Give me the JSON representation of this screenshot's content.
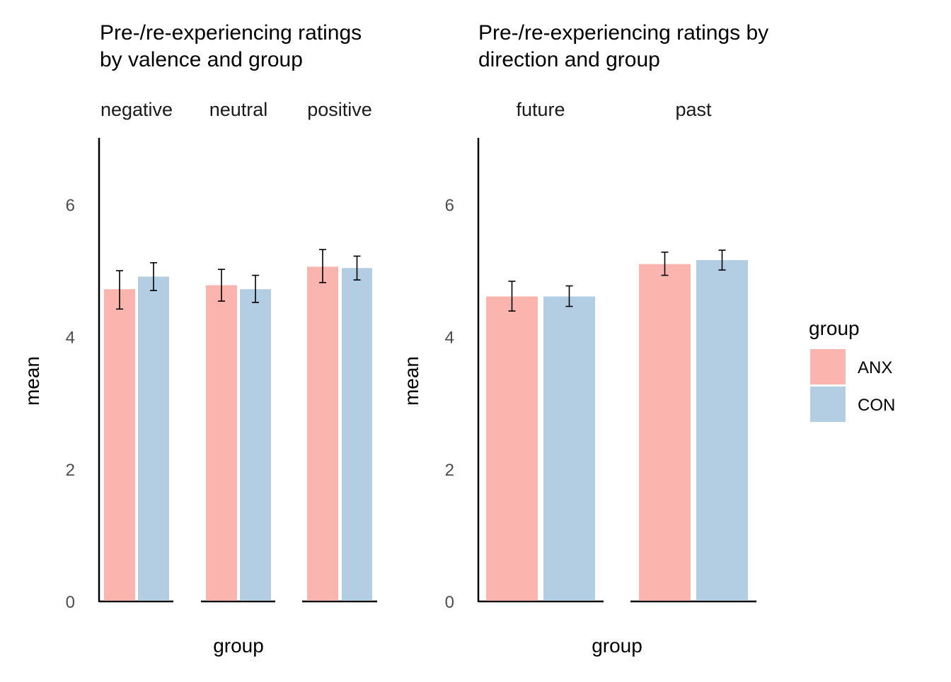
{
  "chart_data": [
    {
      "type": "bar",
      "title": "Pre-/re-experiencing ratings by valence and group",
      "title_lines": [
        "Pre-/re-experiencing ratings",
        "by valence and group"
      ],
      "facets": [
        "negative",
        "neutral",
        "positive"
      ],
      "series": [
        {
          "name": "ANX",
          "values": [
            4.72,
            4.78,
            5.06
          ],
          "error_low": [
            4.42,
            4.54,
            4.82
          ],
          "error_high": [
            5.0,
            5.02,
            5.32
          ]
        },
        {
          "name": "CON",
          "values": [
            4.91,
            4.72,
            5.04
          ],
          "error_low": [
            4.7,
            4.52,
            4.86
          ],
          "error_high": [
            5.12,
            4.93,
            5.22
          ]
        }
      ],
      "xlabel": "group",
      "ylabel": "mean",
      "yticks": [
        "0",
        "2",
        "4",
        "6"
      ],
      "ylim": [
        0,
        7
      ],
      "grid": false
    },
    {
      "type": "bar",
      "title": "Pre-/re-experiencing ratings by direction and group",
      "title_lines": [
        "Pre-/re-experiencing ratings by",
        "direction and group"
      ],
      "facets": [
        "future",
        "past"
      ],
      "series": [
        {
          "name": "ANX",
          "values": [
            4.61,
            5.1
          ],
          "error_low": [
            4.39,
            4.93
          ],
          "error_high": [
            4.84,
            5.28
          ]
        },
        {
          "name": "CON",
          "values": [
            4.61,
            5.16
          ],
          "error_low": [
            4.46,
            5.01
          ],
          "error_high": [
            4.77,
            5.31
          ]
        }
      ],
      "xlabel": "group",
      "ylabel": "mean",
      "yticks": [
        "0",
        "2",
        "4",
        "6"
      ],
      "ylim": [
        0,
        7
      ],
      "grid": false
    }
  ],
  "legend": {
    "title": "group",
    "position": "right",
    "items": [
      {
        "label": "ANX",
        "color": "#FBB4AE"
      },
      {
        "label": "CON",
        "color": "#B3CDE3"
      }
    ]
  }
}
